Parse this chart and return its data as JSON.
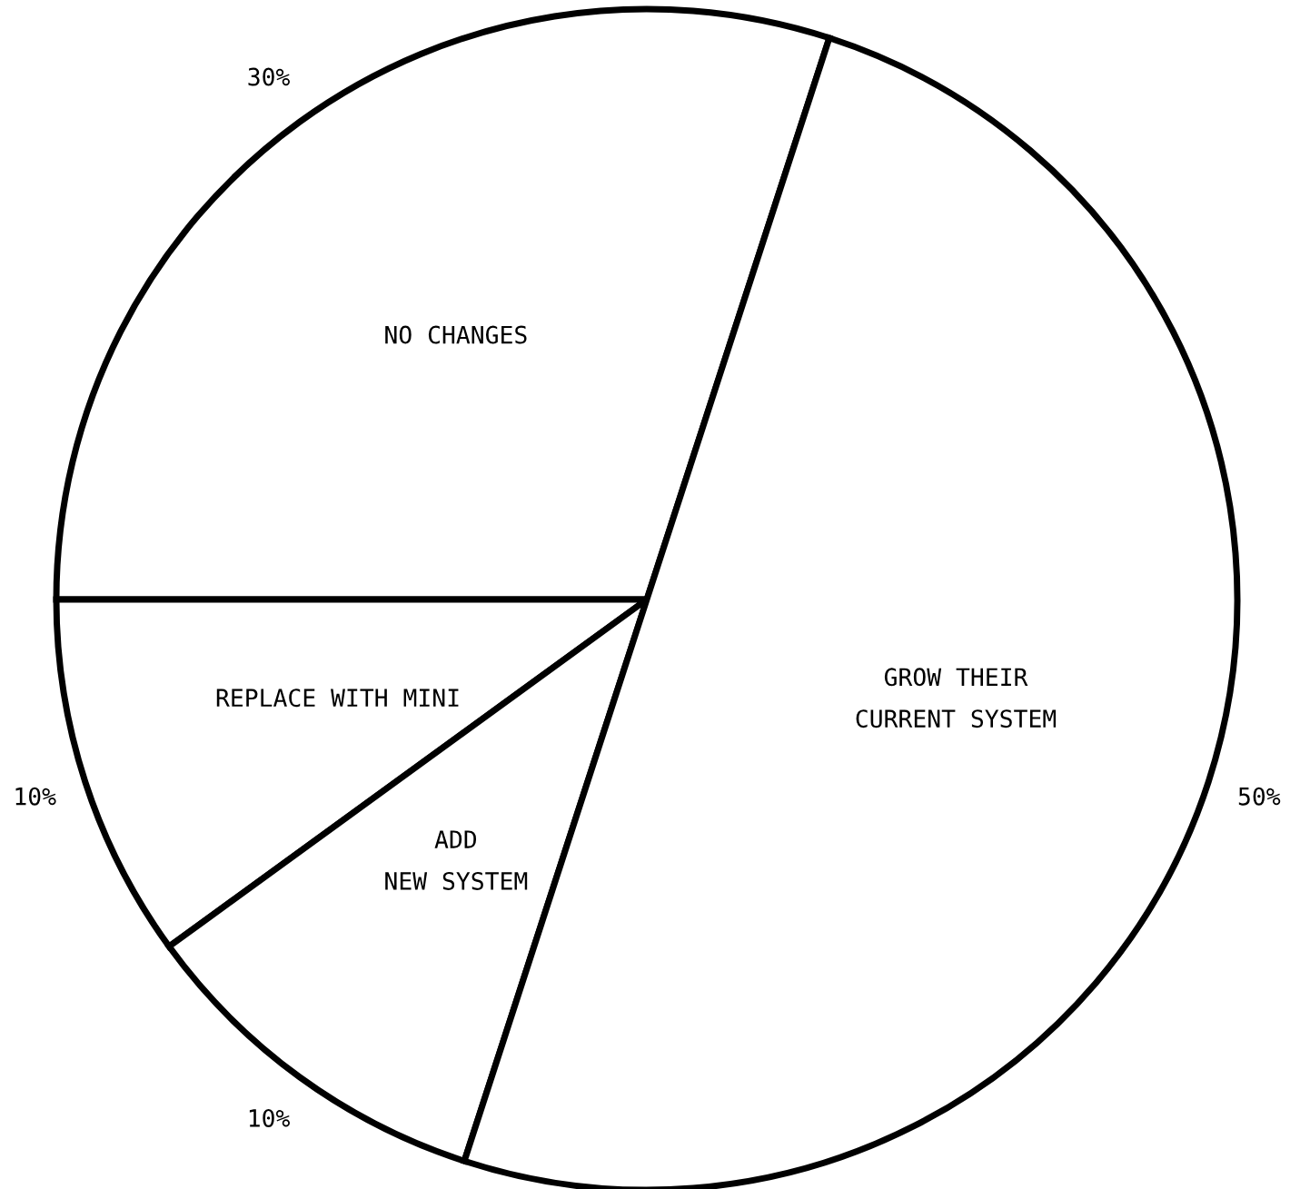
{
  "chart_data": {
    "type": "pie",
    "categories": [
      "NO CHANGES",
      "REPLACE WITH MINI",
      "ADD\nNEW SYSTEM",
      "GROW THEIR\nCURRENT SYSTEM"
    ],
    "values": [
      30,
      10,
      10,
      50
    ],
    "colors": [
      "#ffffff",
      "#ffffff",
      "#ffffff",
      "#ffffff"
    ],
    "value_labels": [
      "30%",
      "10%",
      "10%",
      "50%"
    ]
  }
}
